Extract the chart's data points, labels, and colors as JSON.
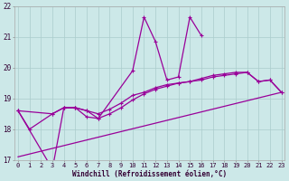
{
  "xlabel": "Windchill (Refroidissement éolien,°C)",
  "bg_color": "#cce8e8",
  "line_color": "#990099",
  "grid_color": "#aacccc",
  "hours": [
    0,
    1,
    2,
    3,
    4,
    5,
    6,
    7,
    8,
    9,
    10,
    11,
    12,
    13,
    14,
    15,
    16,
    17,
    18,
    19,
    20,
    21,
    22,
    23
  ],
  "curve1": [
    18.6,
    18.0,
    null,
    18.5,
    18.7,
    18.7,
    18.4,
    18.35,
    null,
    null,
    19.9,
    21.65,
    20.85,
    19.6,
    19.7,
    21.65,
    21.05,
    null,
    null,
    null,
    null,
    null,
    null,
    null
  ],
  "curve2": [
    18.6,
    null,
    null,
    18.5,
    18.7,
    18.7,
    18.6,
    18.5,
    18.65,
    18.85,
    19.1,
    19.2,
    19.35,
    19.45,
    19.5,
    19.55,
    19.65,
    19.75,
    19.8,
    19.85,
    19.85,
    19.55,
    19.6,
    19.2
  ],
  "curve3_x": [
    0,
    3,
    4,
    5,
    6,
    7,
    8,
    9,
    10,
    11,
    12,
    13,
    14,
    15,
    16,
    17,
    18,
    19,
    20,
    21,
    22,
    23
  ],
  "curve3_y": [
    18.6,
    16.7,
    18.7,
    18.7,
    18.6,
    18.35,
    18.5,
    18.7,
    18.95,
    19.15,
    19.3,
    19.4,
    19.5,
    19.55,
    19.6,
    19.7,
    19.75,
    19.8,
    19.85,
    19.55,
    19.6,
    19.2
  ],
  "line_x": [
    0,
    23
  ],
  "line_y": [
    17.1,
    19.2
  ],
  "ylim": [
    17.0,
    22.0
  ],
  "xlim": [
    -0.3,
    23.3
  ],
  "yticks": [
    17,
    18,
    19,
    20,
    21,
    22
  ],
  "xticks": [
    0,
    1,
    2,
    3,
    4,
    5,
    6,
    7,
    8,
    9,
    10,
    11,
    12,
    13,
    14,
    15,
    16,
    17,
    18,
    19,
    20,
    21,
    22,
    23
  ],
  "tick_fontsize": 5.0,
  "xlabel_fontsize": 5.5
}
